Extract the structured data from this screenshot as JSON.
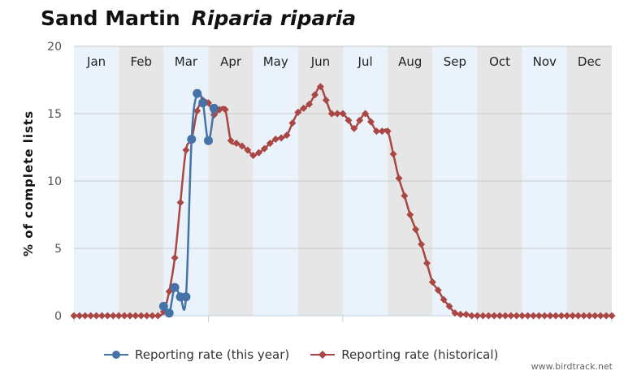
{
  "title": {
    "common": "Sand Martin",
    "scientific": "Riparia riparia"
  },
  "credit": "www.birdtrack.net",
  "colors": {
    "this_year": "#4572A7",
    "historical": "#AA4643",
    "band_light": "#eaf3fb",
    "band_dark": "#e6e6e6"
  },
  "chart_data": {
    "type": "line",
    "ylabel": "% of complete lists",
    "ylim": [
      0,
      20
    ],
    "yticks": [
      0,
      5,
      10,
      15,
      20
    ],
    "x_unit": "week",
    "xlim": [
      0,
      48
    ],
    "months": [
      "Jan",
      "Feb",
      "Mar",
      "Apr",
      "May",
      "Jun",
      "Jul",
      "Aug",
      "Sep",
      "Oct",
      "Nov",
      "Dec"
    ],
    "legend": [
      "Reporting rate (this year)",
      "Reporting rate (historical)"
    ],
    "series": [
      {
        "name": "Reporting rate (this year)",
        "marker": "circle",
        "color": "#4572A7",
        "x": [
          8,
          8.5,
          9,
          9.5,
          10,
          10.5,
          11,
          11.5,
          12,
          12.5
        ],
        "y": [
          0.7,
          0.2,
          2.1,
          1.4,
          1.4,
          13.1,
          16.5,
          15.8,
          13.0,
          15.4
        ]
      },
      {
        "name": "Reporting rate (historical)",
        "marker": "diamond",
        "color": "#AA4643",
        "x": [
          0,
          0.5,
          1,
          1.5,
          2,
          2.5,
          3,
          3.5,
          4,
          4.5,
          5,
          5.5,
          6,
          6.5,
          7,
          7.5,
          8,
          8.5,
          9,
          9.5,
          10,
          10.5,
          11,
          11.5,
          12,
          12.5,
          13,
          13.5,
          14,
          14.5,
          15,
          15.5,
          16,
          16.5,
          17,
          17.5,
          18,
          18.5,
          19,
          19.5,
          20,
          20.5,
          21,
          21.5,
          22,
          22.5,
          23,
          23.5,
          24,
          24.5,
          25,
          25.5,
          26,
          26.5,
          27,
          27.5,
          28,
          28.5,
          29,
          29.5,
          30,
          30.5,
          31,
          31.5,
          32,
          32.5,
          33,
          33.5,
          34,
          34.5,
          35,
          35.5,
          36,
          36.5,
          37,
          37.5,
          38,
          38.5,
          39,
          39.5,
          40,
          40.5,
          41,
          41.5,
          42,
          42.5,
          43,
          43.5,
          44,
          44.5,
          45,
          45.5,
          46,
          46.5,
          47,
          47.5,
          48
        ],
        "y": [
          0,
          0,
          0,
          0,
          0,
          0,
          0,
          0,
          0,
          0,
          0,
          0,
          0,
          0,
          0,
          0,
          0.3,
          1.8,
          4.3,
          8.4,
          12.3,
          13.1,
          15.2,
          16.0,
          15.8,
          14.9,
          15.3,
          15.3,
          13.0,
          12.8,
          12.6,
          12.3,
          11.9,
          12.1,
          12.4,
          12.8,
          13.1,
          13.2,
          13.4,
          14.3,
          15.1,
          15.4,
          15.7,
          16.4,
          17.0,
          16.0,
          15.0,
          15.0,
          15.0,
          14.5,
          13.9,
          14.5,
          15.0,
          14.4,
          13.7,
          13.7,
          13.7,
          12.0,
          10.2,
          8.9,
          7.5,
          6.4,
          5.3,
          3.9,
          2.5,
          1.9,
          1.2,
          0.7,
          0.2,
          0.1,
          0.1,
          0,
          0,
          0,
          0,
          0,
          0,
          0,
          0,
          0,
          0,
          0,
          0,
          0,
          0,
          0,
          0,
          0,
          0,
          0,
          0,
          0,
          0,
          0,
          0,
          0,
          0
        ]
      }
    ]
  }
}
